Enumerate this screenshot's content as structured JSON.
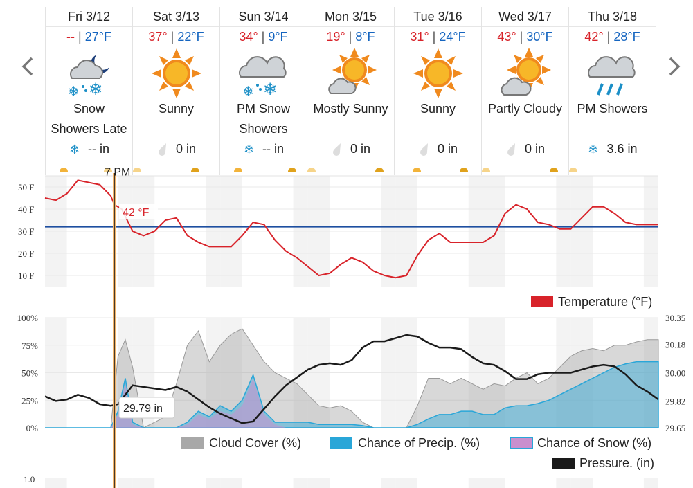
{
  "nav": {
    "prev_icon": "chevron-left-icon",
    "next_icon": "chevron-right-icon"
  },
  "days": [
    {
      "header": "Fri 3/12",
      "hi": "--",
      "lo": "27°F",
      "icon": "snow-showers-night-icon",
      "condition_line1": "Snow",
      "condition_line2": "Showers Late",
      "precip_icon": "snowflake-icon",
      "precip": "-- in"
    },
    {
      "header": "Sat 3/13",
      "hi": "37°",
      "lo": "22°F",
      "icon": "sun-icon",
      "condition_line1": "Sunny",
      "condition_line2": "",
      "precip_icon": "raindrop-icon",
      "precip": "0 in"
    },
    {
      "header": "Sun 3/14",
      "hi": "34°",
      "lo": "9°F",
      "icon": "cloud-snow-icon",
      "condition_line1": "PM Snow",
      "condition_line2": "Showers",
      "precip_icon": "snowflake-icon",
      "precip": "-- in"
    },
    {
      "header": "Mon 3/15",
      "hi": "19°",
      "lo": "8°F",
      "icon": "mostly-sunny-icon",
      "condition_line1": "Mostly Sunny",
      "condition_line2": "",
      "precip_icon": "raindrop-icon",
      "precip": "0 in"
    },
    {
      "header": "Tue 3/16",
      "hi": "31°",
      "lo": "24°F",
      "icon": "sun-icon",
      "condition_line1": "Sunny",
      "condition_line2": "",
      "precip_icon": "raindrop-icon",
      "precip": "0 in"
    },
    {
      "header": "Wed 3/17",
      "hi": "43°",
      "lo": "30°F",
      "icon": "partly-cloudy-icon",
      "condition_line1": "Partly Cloudy",
      "condition_line2": "",
      "precip_icon": "raindrop-icon",
      "precip": "0 in"
    },
    {
      "header": "Thu 3/18",
      "hi": "42°",
      "lo": "28°F",
      "icon": "cloud-rain-icon",
      "condition_line1": "PM Showers",
      "condition_line2": "",
      "precip_icon": "snowflake-icon",
      "precip": "3.6 in"
    }
  ],
  "cursor": {
    "time_label": "7 PM",
    "temp_label": "42 °F",
    "pressure_label": "29.79 in"
  },
  "colors": {
    "temperature": "#d8232a",
    "freezing_line": "#1e4fa0",
    "cloud": "#a8a8a8",
    "precip": "#29a6d8",
    "snow": "#c98fce",
    "pressure": "#1a1a1a"
  },
  "chart_data": [
    {
      "type": "line",
      "title": "",
      "ylabel": "",
      "ylim": [
        5,
        55
      ],
      "y_ticks": [
        "50 F",
        "40 F",
        "30 F",
        "20 F",
        "10 F"
      ],
      "x_unit": "hours from Fri 3/12 00:00",
      "reference_line": {
        "name": "freezing",
        "value": 32
      },
      "legend": {
        "placement": "bottom-right",
        "entries": [
          "Temperature (°F)"
        ]
      },
      "series": [
        {
          "name": "Temperature (°F)",
          "x": [
            0,
            3,
            6,
            9,
            12,
            15,
            18,
            19,
            21,
            24,
            27,
            30,
            33,
            36,
            39,
            42,
            45,
            48,
            51,
            54,
            57,
            60,
            63,
            66,
            69,
            72,
            75,
            78,
            81,
            84,
            87,
            90,
            93,
            96,
            99,
            102,
            105,
            108,
            111,
            114,
            117,
            120,
            123,
            126,
            129,
            132,
            135,
            138,
            141,
            144,
            147,
            150,
            153,
            156,
            159,
            162,
            165,
            168
          ],
          "values": [
            45,
            44,
            47,
            53,
            52,
            51,
            46,
            42,
            40,
            30,
            28,
            30,
            35,
            36,
            28,
            25,
            23,
            23,
            23,
            28,
            34,
            33,
            26,
            21,
            18,
            14,
            10,
            11,
            15,
            18,
            16,
            12,
            10,
            9,
            10,
            19,
            26,
            29,
            25,
            25,
            25,
            25,
            28,
            38,
            42,
            40,
            34,
            33,
            31,
            31,
            36,
            41,
            41,
            38,
            34,
            33,
            33,
            33
          ]
        }
      ]
    },
    {
      "type": "area",
      "title": "",
      "ylim_left": [
        0,
        100
      ],
      "left_ticks": [
        "100%",
        "75%",
        "50%",
        "25%",
        "0%"
      ],
      "right_ticks": [
        "30.35",
        "30.18",
        "30.00",
        "29.82",
        "29.65"
      ],
      "ylim_right": [
        29.65,
        30.35
      ],
      "legend": {
        "placement": "bottom-right",
        "entries": [
          "Cloud Cover (%)",
          "Chance of Precip. (%)",
          "Chance of Snow (%)",
          "Pressure. (in)"
        ]
      },
      "x": [
        0,
        3,
        6,
        9,
        12,
        15,
        18,
        20,
        22,
        24,
        27,
        30,
        33,
        36,
        39,
        42,
        45,
        48,
        51,
        54,
        57,
        60,
        63,
        66,
        69,
        72,
        75,
        78,
        81,
        84,
        87,
        90,
        93,
        96,
        99,
        102,
        105,
        108,
        111,
        114,
        117,
        120,
        123,
        126,
        129,
        132,
        135,
        138,
        141,
        144,
        147,
        150,
        153,
        156,
        159,
        162,
        165,
        168
      ],
      "series": [
        {
          "name": "Cloud Cover (%)",
          "axis": "left",
          "values": [
            0,
            0,
            0,
            0,
            0,
            0,
            0,
            65,
            80,
            55,
            0,
            5,
            10,
            40,
            75,
            88,
            60,
            75,
            85,
            90,
            75,
            60,
            50,
            45,
            40,
            30,
            20,
            18,
            20,
            15,
            5,
            0,
            0,
            0,
            0,
            20,
            45,
            45,
            40,
            45,
            40,
            35,
            40,
            38,
            45,
            50,
            40,
            45,
            55,
            65,
            70,
            72,
            70,
            75,
            75,
            78,
            80,
            80
          ]
        },
        {
          "name": "Chance of Precip. (%)",
          "axis": "left",
          "values": [
            0,
            0,
            0,
            0,
            0,
            0,
            0,
            15,
            45,
            5,
            0,
            0,
            0,
            0,
            5,
            15,
            10,
            20,
            15,
            25,
            48,
            15,
            5,
            5,
            5,
            5,
            3,
            3,
            3,
            3,
            2,
            0,
            0,
            0,
            0,
            3,
            8,
            12,
            12,
            15,
            15,
            12,
            12,
            18,
            20,
            20,
            22,
            25,
            30,
            35,
            40,
            45,
            50,
            55,
            58,
            60,
            60,
            60
          ]
        },
        {
          "name": "Chance of Snow (%)",
          "axis": "left",
          "values": [
            0,
            0,
            0,
            0,
            0,
            0,
            0,
            12,
            40,
            3,
            0,
            0,
            0,
            0,
            3,
            12,
            8,
            15,
            12,
            20,
            45,
            12,
            3,
            0,
            0,
            0,
            0,
            0,
            0,
            0,
            0,
            0,
            0,
            0,
            0,
            0,
            0,
            0,
            0,
            0,
            0,
            0,
            0,
            0,
            0,
            0,
            0,
            0,
            0,
            0,
            0,
            0,
            0,
            0,
            0,
            0,
            0,
            0
          ]
        },
        {
          "name": "Pressure. (in)",
          "axis": "right",
          "values": [
            29.85,
            29.82,
            29.83,
            29.86,
            29.84,
            29.8,
            29.79,
            29.8,
            29.86,
            29.92,
            29.91,
            29.9,
            29.89,
            29.91,
            29.88,
            29.83,
            29.78,
            29.74,
            29.71,
            29.68,
            29.69,
            29.77,
            29.85,
            29.92,
            29.97,
            30.02,
            30.05,
            30.06,
            30.05,
            30.08,
            30.16,
            30.2,
            30.2,
            30.22,
            30.24,
            30.23,
            30.19,
            30.16,
            30.16,
            30.15,
            30.1,
            30.06,
            30.05,
            30.01,
            29.96,
            29.96,
            29.99,
            30.0,
            30.0,
            30.0,
            30.02,
            30.04,
            30.05,
            30.04,
            29.99,
            29.92,
            29.88,
            29.83
          ]
        }
      ]
    },
    {
      "type": "line",
      "title": "",
      "y_ticks": [
        "1.0"
      ],
      "series": []
    }
  ]
}
